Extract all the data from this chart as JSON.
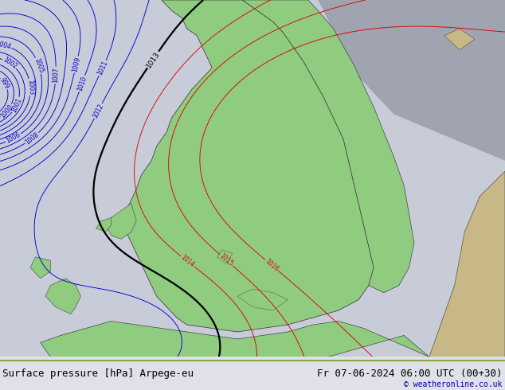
{
  "title_left": "Surface pressure [hPa] Arpege-eu",
  "title_right": "Fr 07-06-2024 06:00 UTC (00+30)",
  "copyright": "© weatheronline.co.uk",
  "footer_bg": "#e0e0e8",
  "footer_line_color": "#88aa44",
  "blue_color": "#0000cc",
  "red_color": "#dd0000",
  "black_color": "#000000",
  "land_green": "#90cc80",
  "land_tan": "#c8b888",
  "ocean_gray": "#c8ccd8",
  "shadow_gray": "#a0a4b0",
  "font_size_footer": 9,
  "font_size_label": 5.5
}
